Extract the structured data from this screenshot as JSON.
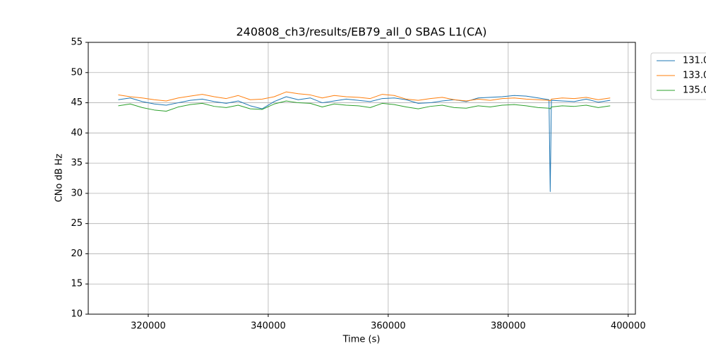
{
  "chart_data": {
    "type": "line",
    "title": "240808_ch3/results/EB79_all_0 SBAS L1(CA)",
    "xlabel": "Time (s)",
    "ylabel": "CNo dB Hz",
    "x": [
      315000,
      317000,
      319000,
      321000,
      323000,
      325000,
      327000,
      329000,
      331000,
      333000,
      335000,
      337000,
      339000,
      341000,
      343000,
      345000,
      347000,
      349000,
      351000,
      353000,
      355000,
      357000,
      359000,
      361000,
      363000,
      365000,
      367000,
      369000,
      371000,
      373000,
      375000,
      377000,
      379000,
      381000,
      383000,
      385000,
      386800,
      387000,
      387200,
      389000,
      391000,
      393000,
      395000,
      397000
    ],
    "series": [
      {
        "name": "131.0",
        "color": "#1f77b4",
        "values": [
          45.5,
          45.8,
          45.2,
          44.8,
          44.6,
          45.0,
          45.4,
          45.6,
          45.2,
          44.9,
          45.3,
          44.5,
          44.0,
          45.2,
          46.0,
          45.5,
          45.8,
          45.0,
          45.3,
          45.6,
          45.4,
          45.2,
          45.7,
          45.8,
          45.5,
          44.9,
          45.0,
          45.3,
          45.5,
          45.2,
          45.8,
          45.9,
          46.0,
          46.2,
          46.1,
          45.8,
          45.5,
          30.3,
          45.4,
          45.3,
          45.2,
          45.6,
          45.1,
          45.4
        ]
      },
      {
        "name": "133.0",
        "color": "#ff7f0e",
        "values": [
          46.3,
          46.0,
          45.8,
          45.5,
          45.3,
          45.8,
          46.1,
          46.4,
          46.0,
          45.7,
          46.2,
          45.5,
          45.6,
          46.0,
          46.8,
          46.5,
          46.3,
          45.8,
          46.2,
          46.0,
          45.9,
          45.7,
          46.4,
          46.2,
          45.6,
          45.4,
          45.7,
          45.9,
          45.5,
          45.3,
          45.6,
          45.4,
          45.7,
          45.8,
          45.6,
          45.5,
          45.4,
          45.3,
          45.6,
          45.8,
          45.7,
          45.9,
          45.5,
          45.8
        ]
      },
      {
        "name": "135.0",
        "color": "#2ca02c",
        "values": [
          44.5,
          44.8,
          44.2,
          43.8,
          43.6,
          44.3,
          44.7,
          44.9,
          44.4,
          44.2,
          44.6,
          44.0,
          43.9,
          44.8,
          45.3,
          45.0,
          44.9,
          44.3,
          44.8,
          44.6,
          44.5,
          44.2,
          44.9,
          44.7,
          44.3,
          44.0,
          44.4,
          44.6,
          44.2,
          44.1,
          44.5,
          44.3,
          44.6,
          44.7,
          44.5,
          44.2,
          44.1,
          44.0,
          44.3,
          44.5,
          44.4,
          44.6,
          44.2,
          44.5
        ]
      }
    ],
    "xlim": [
      310000,
      401200
    ],
    "ylim": [
      10,
      55
    ],
    "xticks": [
      320000,
      340000,
      360000,
      380000,
      400000
    ],
    "yticks": [
      10,
      15,
      20,
      25,
      30,
      35,
      40,
      45,
      50,
      55
    ],
    "grid": true,
    "legend": "outside-upper-right"
  }
}
